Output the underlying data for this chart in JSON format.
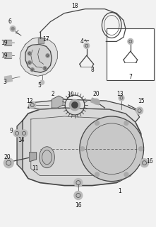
{
  "bg_color": "#f2f2f2",
  "line_color": "#444444",
  "font_size": 5.5,
  "label_color": "#111111",
  "lw_main": 0.9,
  "lw_thin": 0.5,
  "lw_thick": 1.2
}
